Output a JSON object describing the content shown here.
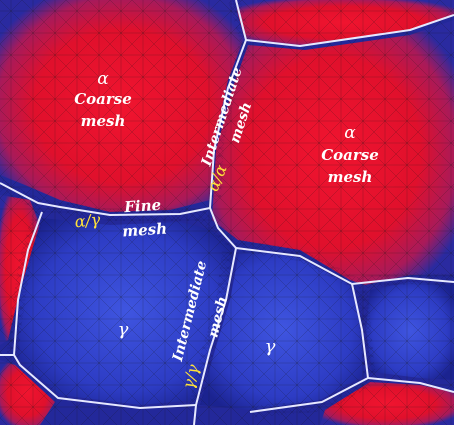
{
  "colors": {
    "alpha_phase": "#e8122e",
    "gamma_phase": "#2f3fc8",
    "boundary_dark": "#1c1f7a",
    "boundary_line": "#e6e8ff",
    "label": "#ffffff",
    "interface_label": "#ffe23a"
  },
  "regions": {
    "alpha_left": {
      "phase": "α",
      "line1": "Coarse",
      "line2": "mesh"
    },
    "alpha_right": {
      "phase": "α",
      "line1": "Coarse",
      "line2": "mesh"
    },
    "gamma_left": {
      "phase": "γ"
    },
    "gamma_right": {
      "phase": "γ"
    }
  },
  "annotations": {
    "intermediate_top": {
      "line1": "Intermediate",
      "line2": "mesh"
    },
    "fine": {
      "line1": "Fine",
      "line2": "mesh"
    },
    "intermediate_bottom": {
      "line1": "Intermediate",
      "line2": "mesh"
    },
    "interface_top": "α/α",
    "interface_left": "α/γ",
    "interface_bottom": "γ/γ"
  }
}
